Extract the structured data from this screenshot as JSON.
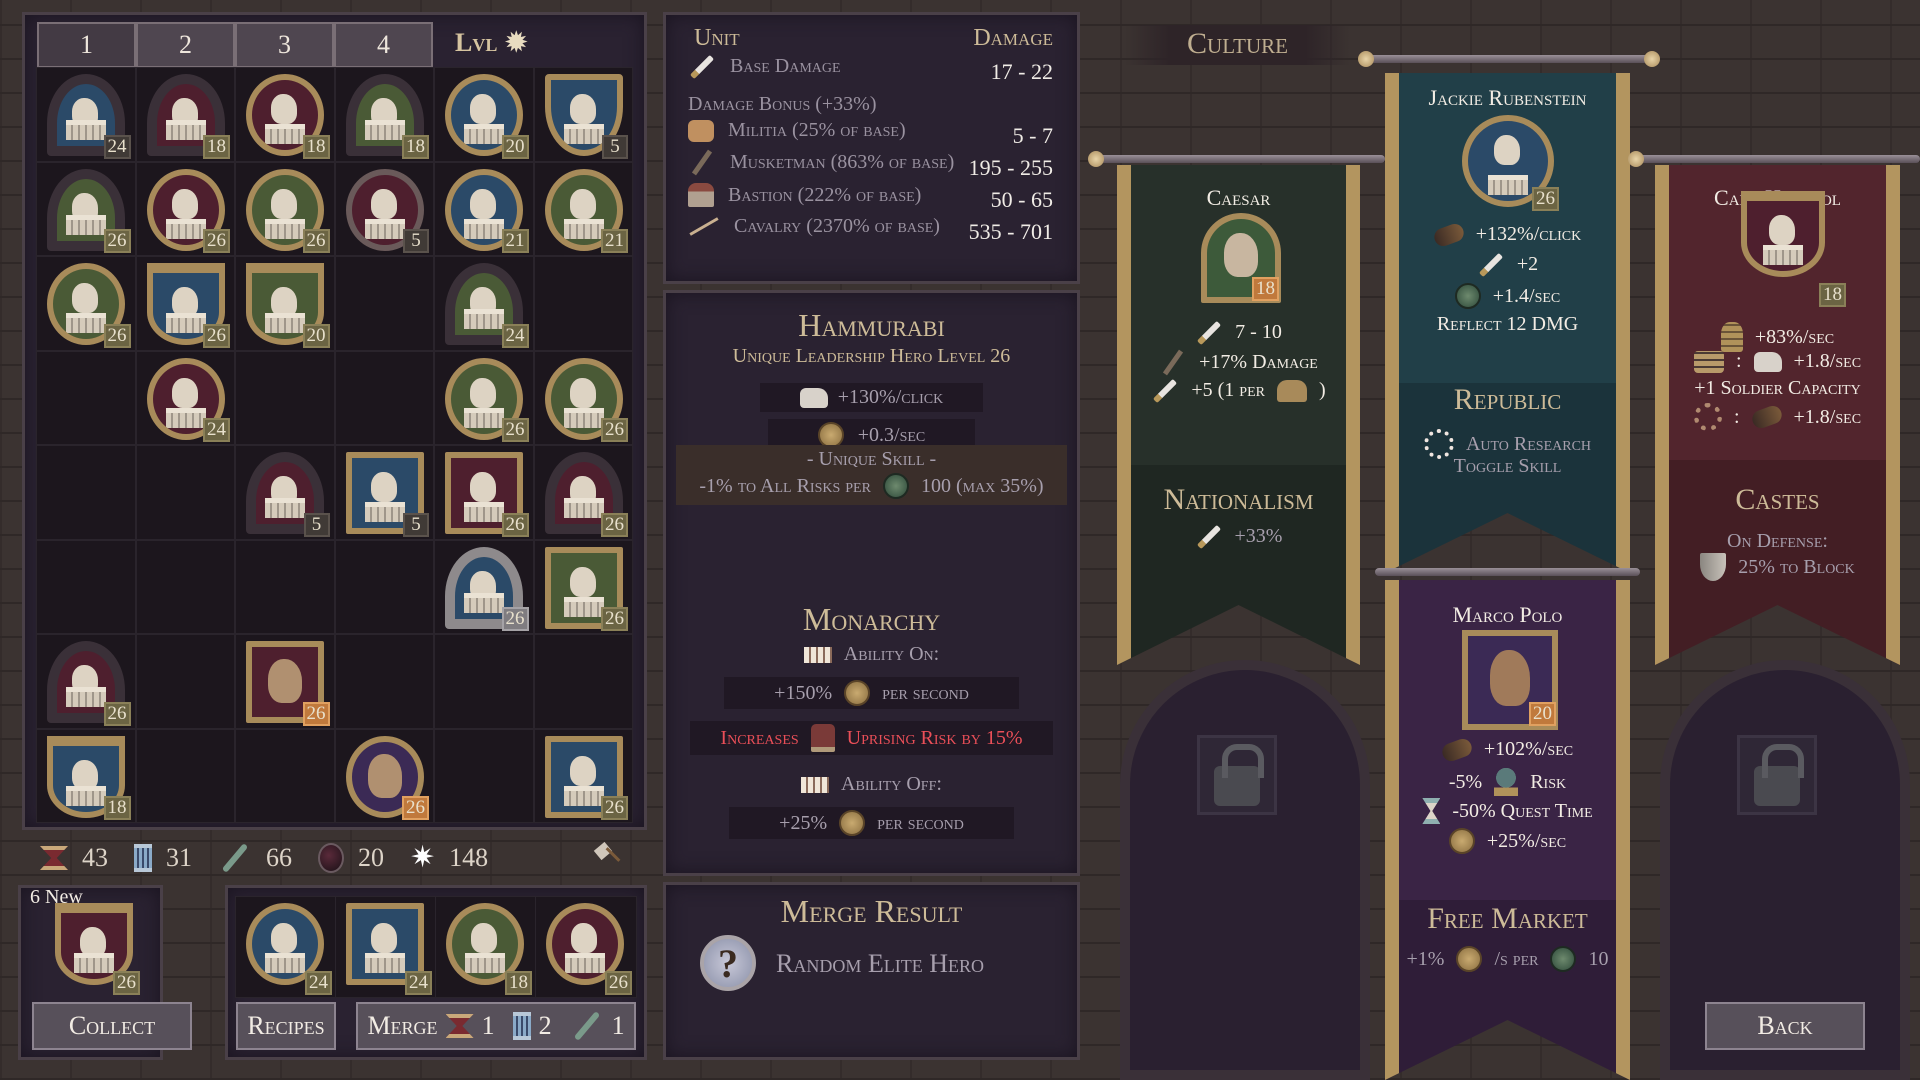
{
  "tabs": [
    {
      "label": "1",
      "active": true
    },
    {
      "label": "2"
    },
    {
      "label": "3"
    },
    {
      "label": "4"
    }
  ],
  "lvl_label": "Lvl",
  "grid": [
    [
      {
        "level": 24,
        "color": "blue",
        "frame": "arch"
      },
      {
        "level": 18,
        "color": "red",
        "frame": "arch"
      },
      {
        "level": 18,
        "color": "red",
        "frame": "oval"
      },
      {
        "level": 18,
        "color": "green",
        "frame": "arch"
      },
      {
        "level": 20,
        "color": "blue",
        "frame": "oval"
      },
      {
        "level": 5,
        "color": "blue",
        "frame": "shield"
      }
    ],
    [
      {
        "level": 26,
        "color": "green",
        "frame": "arch"
      },
      {
        "level": 26,
        "color": "red",
        "frame": "oval"
      },
      {
        "level": 26,
        "color": "green",
        "frame": "oval"
      },
      {
        "level": 5,
        "color": "red",
        "frame": "oval",
        "trim": "grey"
      },
      {
        "level": 21,
        "color": "blue",
        "frame": "oval"
      },
      {
        "level": 21,
        "color": "green",
        "frame": "oval"
      }
    ],
    [
      {
        "level": 26,
        "color": "green",
        "frame": "oval"
      },
      {
        "level": 26,
        "color": "blue",
        "frame": "banner"
      },
      {
        "level": 20,
        "color": "green",
        "frame": "banner"
      },
      null,
      {
        "level": 24,
        "color": "green",
        "frame": "arch"
      },
      null
    ],
    [
      null,
      {
        "level": 24,
        "color": "red",
        "frame": "oval"
      },
      null,
      null,
      {
        "level": 26,
        "color": "green",
        "frame": "oval"
      },
      {
        "level": 26,
        "color": "green",
        "frame": "oval"
      }
    ],
    [
      null,
      null,
      {
        "level": 5,
        "color": "red",
        "frame": "arch"
      },
      {
        "level": 5,
        "color": "blue",
        "frame": "square"
      },
      {
        "level": 26,
        "color": "red",
        "frame": "square"
      },
      {
        "level": 26,
        "color": "red",
        "frame": "arch"
      }
    ],
    [
      null,
      null,
      null,
      null,
      {
        "level": 26,
        "color": "blue",
        "frame": "arch",
        "trim": "silver"
      },
      {
        "level": 26,
        "color": "green",
        "frame": "square"
      }
    ],
    [
      {
        "level": 26,
        "color": "red",
        "frame": "arch"
      },
      null,
      {
        "level": 26,
        "color": "red",
        "frame": "square",
        "unique": true
      },
      null,
      null,
      null
    ],
    [
      {
        "level": 18,
        "color": "blue",
        "frame": "banner"
      },
      null,
      null,
      {
        "level": 26,
        "color": "purple",
        "frame": "oval",
        "unique": true
      },
      null,
      {
        "level": 26,
        "color": "blue",
        "frame": "square"
      }
    ]
  ],
  "resources": [
    {
      "icon": "hourglass-red-icon",
      "value": "43"
    },
    {
      "icon": "pillar-icon",
      "value": "31"
    },
    {
      "icon": "sword-green-icon",
      "value": "66"
    },
    {
      "icon": "orb-icon",
      "value": "20"
    },
    {
      "icon": "star-icon",
      "value": "148"
    }
  ],
  "new_box": {
    "label": "6 New",
    "hero": {
      "level": 26,
      "color": "red",
      "frame": "banner"
    },
    "collect": "Collect"
  },
  "merge_slots": [
    {
      "level": 24,
      "color": "blue",
      "frame": "oval"
    },
    {
      "level": 24,
      "color": "blue",
      "frame": "square"
    },
    {
      "level": 18,
      "color": "green",
      "frame": "oval"
    },
    {
      "level": 26,
      "color": "red",
      "frame": "oval"
    }
  ],
  "recipes": "Recipes",
  "merge": {
    "label": "Merge",
    "costs": [
      "1",
      "2",
      "1"
    ]
  },
  "damage_table": {
    "header_unit": "Unit",
    "header_damage": "Damage",
    "base": {
      "label": "Base Damage",
      "value": "17 - 22"
    },
    "bonus": "Damage Bonus (+33%)",
    "rows": [
      {
        "icon": "fist-icon",
        "label": "Militia (25% of base)",
        "value": "5 - 7"
      },
      {
        "icon": "musket-icon",
        "label": "Musketman (863% of base)",
        "value": "195 - 255"
      },
      {
        "icon": "bastion-icon",
        "label": "Bastion (222% of base)",
        "value": "50 - 65"
      },
      {
        "icon": "lance-icon",
        "label": "Cavalry (2370% of base)",
        "value": "535 - 701"
      }
    ]
  },
  "hero_info": {
    "name": "Hammurabi",
    "subtitle": "Unique Leadership Hero Level 26",
    "stat1": "+130%/click",
    "stat2": "+0.3/sec",
    "skill_title": "- Unique Skill -",
    "skill_text_a": "-1% to All Risks per",
    "skill_text_b": "100 (max 35%)",
    "gov": "Monarchy",
    "ability_on": "Ability On:",
    "on_a": "+150%",
    "on_b": "per second",
    "inc_a": "Increases",
    "inc_b": "Uprising Risk by 15%",
    "ability_off": "Ability Off:",
    "off_a": "+25%",
    "off_b": "per second"
  },
  "merge_result": {
    "title": "Merge Result",
    "text": "Random Elite Hero"
  },
  "culture": {
    "title": "Culture",
    "caesar": {
      "name": "Caesar",
      "level": "18",
      "s1": "7 - 10",
      "s2": "+17% Damage",
      "s3a": "+5 (1 per",
      "s3b": ")",
      "gov": "Nationalism",
      "g1": "+33%",
      "color": "#27302a"
    },
    "jackie": {
      "name": "Jackie Rubenstein",
      "level": "26",
      "s1": "+132%/click",
      "s2": "+2",
      "s3": "+1.4/sec",
      "s4": "Reflect 12 DMG",
      "gov": "Republic",
      "g1": "Auto Research",
      "g2": "Toggle Skill",
      "color": "#213f48"
    },
    "cary": {
      "name": "Cary Harpool",
      "level": "18",
      "s1": "+83%/sec",
      "s2": "+1.8/sec",
      "s3": "+1 Soldier Capacity",
      "s4": "+1.8/sec",
      "gov": "Castes",
      "g1": "On Defense:",
      "g2": "25% to Block",
      "color": "#52252d"
    },
    "marco": {
      "name": "Marco Polo",
      "level": "20",
      "s1": "+102%/sec",
      "s2a": "-5%",
      "s2b": "Risk",
      "s3": "-50% Quest Time",
      "s4": "+25%/sec",
      "gov": "Free Market",
      "g1a": "+1%",
      "g1b": "/s per",
      "g1c": "10",
      "color": "#3a2445"
    }
  },
  "back": "Back",
  "colors": {
    "gold": "#b3955f",
    "text": "#c9b79a",
    "danger": "#ea4f58",
    "panel": "#2a2231"
  }
}
